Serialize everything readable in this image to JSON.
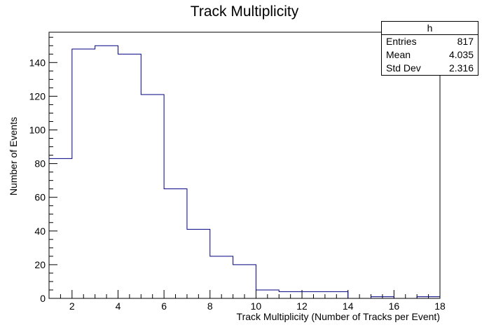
{
  "chart_data": {
    "type": "histogram",
    "title": "Track Multiplicity",
    "xlabel": "Track Multiplicity (Number of Tracks per Event)",
    "ylabel": "Number of Events",
    "xlim": [
      1,
      18
    ],
    "ylim": [
      0,
      158
    ],
    "x_ticks": [
      "2",
      "4",
      "6",
      "8",
      "10",
      "12",
      "14",
      "16",
      "18"
    ],
    "y_ticks": [
      "0",
      "20",
      "40",
      "60",
      "80",
      "100",
      "120",
      "140"
    ],
    "bin_edges": [
      1,
      2,
      3,
      4,
      5,
      6,
      7,
      8,
      9,
      10,
      11,
      12,
      13,
      14,
      15,
      16,
      17,
      18
    ],
    "values": [
      83,
      148,
      150,
      145,
      121,
      65,
      41,
      25,
      20,
      5,
      4,
      4,
      4,
      0,
      1,
      0,
      1
    ],
    "line_color": "#000080",
    "grid": false
  },
  "stats": {
    "name": "h",
    "rows": [
      {
        "label": "Entries",
        "value": "817"
      },
      {
        "label": "Mean",
        "value": "4.035"
      },
      {
        "label": "Std Dev",
        "value": "2.316"
      }
    ]
  }
}
